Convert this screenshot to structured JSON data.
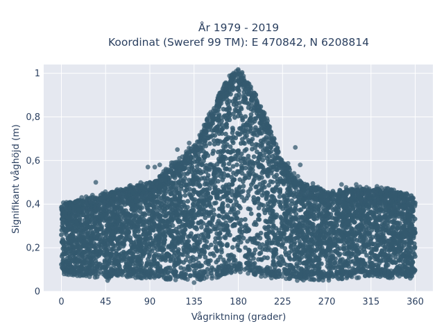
{
  "chart_data": {
    "type": "scatter",
    "title_lines": [
      "År 1979 - 2019",
      "Koordinat (Sweref 99 TM): E 470842, N 6208814"
    ],
    "xlabel": "Vågriktning (grader)",
    "ylabel": "Signifikant våghöjd (m)",
    "xlim": [
      -18,
      378
    ],
    "ylim": [
      0,
      1.04
    ],
    "x_ticks": [
      0,
      45,
      90,
      135,
      180,
      225,
      270,
      315,
      360
    ],
    "x_tick_labels": [
      "0",
      "45",
      "90",
      "135",
      "180",
      "225",
      "270",
      "315",
      "360"
    ],
    "y_ticks": [
      0,
      0.2,
      0.4,
      0.6,
      0.8,
      1
    ],
    "y_tick_labels": [
      "0",
      "0,2",
      "0,4",
      "0,6",
      "0,8",
      "1"
    ],
    "grid": true,
    "marker_color": "#34596f",
    "background_color": "#e5e8f0",
    "envelope": {
      "direction": [
        0,
        20,
        45,
        90,
        120,
        140,
        155,
        165,
        175,
        180,
        190,
        200,
        215,
        225,
        245,
        270,
        300,
        330,
        360
      ],
      "min_height": [
        0.09,
        0.08,
        0.07,
        0.07,
        0.06,
        0.06,
        0.07,
        0.08,
        0.1,
        0.1,
        0.09,
        0.08,
        0.07,
        0.07,
        0.06,
        0.06,
        0.07,
        0.07,
        0.08
      ],
      "max_height": [
        0.4,
        0.42,
        0.45,
        0.5,
        0.6,
        0.7,
        0.85,
        0.95,
        1.0,
        1.01,
        0.97,
        0.88,
        0.72,
        0.6,
        0.5,
        0.46,
        0.47,
        0.47,
        0.44
      ]
    },
    "outliers": [
      {
        "x": 35,
        "y": 0.5
      },
      {
        "x": 88,
        "y": 0.57
      },
      {
        "x": 95,
        "y": 0.57
      },
      {
        "x": 100,
        "y": 0.58
      },
      {
        "x": 112,
        "y": 0.59
      },
      {
        "x": 118,
        "y": 0.65
      },
      {
        "x": 130,
        "y": 0.68
      },
      {
        "x": 243,
        "y": 0.58
      },
      {
        "x": 238,
        "y": 0.66
      },
      {
        "x": 285,
        "y": 0.49
      },
      {
        "x": 300,
        "y": 0.49
      },
      {
        "x": 47,
        "y": 0.05
      },
      {
        "x": 135,
        "y": 0.04
      },
      {
        "x": 240,
        "y": 0.05
      },
      {
        "x": 355,
        "y": 0.06
      }
    ]
  }
}
